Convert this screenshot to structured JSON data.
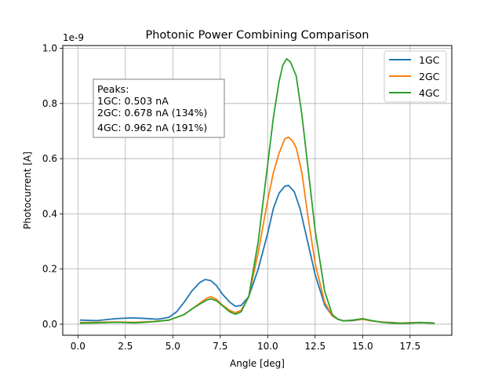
{
  "chart_data": {
    "type": "line",
    "title": "Photonic Power Combining Comparison",
    "xlabel": "Angle [deg]",
    "ylabel": "Photocurrent [A]",
    "y_scale_label": "1e-9",
    "xlim": [
      -0.8,
      19.7
    ],
    "ylim": [
      -0.04,
      1.01
    ],
    "grid": true,
    "legend_position": "top-right",
    "xticks": [
      0.0,
      2.5,
      5.0,
      7.5,
      10.0,
      12.5,
      15.0,
      17.5
    ],
    "xtick_labels": [
      "0.0",
      "2.5",
      "5.0",
      "7.5",
      "10.0",
      "12.5",
      "15.0",
      "17.5"
    ],
    "yticks": [
      0.0,
      0.2,
      0.4,
      0.6,
      0.8,
      1.0
    ],
    "ytick_labels": [
      "0.0",
      "0.2",
      "0.4",
      "0.6",
      "0.8",
      "1.0"
    ],
    "annotation": {
      "lines": [
        "Peaks:",
        "1GC: 0.503 nA",
        "2GC: 0.678 nA (134%)",
        "4GC: 0.962 nA (191%)"
      ]
    },
    "series": [
      {
        "name": "1GC",
        "color": "#1f77b4",
        "x": [
          0.1,
          1.0,
          2.0,
          2.8,
          3.5,
          4.2,
          4.8,
          5.2,
          5.6,
          6.0,
          6.4,
          6.7,
          7.0,
          7.3,
          7.6,
          8.0,
          8.3,
          8.6,
          9.0,
          9.5,
          10.0,
          10.3,
          10.6,
          10.9,
          11.1,
          11.4,
          11.7,
          12.0,
          12.5,
          13.0,
          13.4,
          13.7,
          14.0,
          14.5,
          15.0,
          15.5,
          16.0,
          16.5,
          17.0,
          17.5,
          18.0,
          18.8
        ],
        "y": [
          0.015,
          0.013,
          0.02,
          0.023,
          0.021,
          0.018,
          0.025,
          0.045,
          0.08,
          0.12,
          0.15,
          0.162,
          0.158,
          0.14,
          0.11,
          0.08,
          0.065,
          0.068,
          0.1,
          0.2,
          0.33,
          0.42,
          0.475,
          0.5,
          0.503,
          0.48,
          0.42,
          0.33,
          0.18,
          0.07,
          0.03,
          0.018,
          0.012,
          0.013,
          0.018,
          0.012,
          0.008,
          0.006,
          0.004,
          0.005,
          0.006,
          0.004
        ]
      },
      {
        "name": "2GC",
        "color": "#ff7f0e",
        "x": [
          0.1,
          1.0,
          2.0,
          3.0,
          4.0,
          4.8,
          5.2,
          5.6,
          6.0,
          6.4,
          6.8,
          7.0,
          7.3,
          7.6,
          8.0,
          8.3,
          8.6,
          9.0,
          9.5,
          10.0,
          10.3,
          10.6,
          10.9,
          11.1,
          11.3,
          11.5,
          11.8,
          12.1,
          12.5,
          13.0,
          13.4,
          13.7,
          14.0,
          14.5,
          15.0,
          15.5,
          16.0,
          16.5,
          17.0,
          17.5,
          18.0,
          18.8
        ],
        "y": [
          0.006,
          0.007,
          0.008,
          0.007,
          0.01,
          0.015,
          0.025,
          0.035,
          0.055,
          0.075,
          0.095,
          0.1,
          0.09,
          0.07,
          0.05,
          0.042,
          0.05,
          0.1,
          0.26,
          0.45,
          0.55,
          0.62,
          0.672,
          0.678,
          0.665,
          0.64,
          0.55,
          0.4,
          0.22,
          0.08,
          0.03,
          0.018,
          0.012,
          0.014,
          0.018,
          0.012,
          0.008,
          0.005,
          0.004,
          0.005,
          0.006,
          0.004
        ]
      },
      {
        "name": "4GC",
        "color": "#2ca02c",
        "x": [
          0.1,
          1.0,
          2.0,
          3.0,
          4.0,
          4.8,
          5.2,
          5.6,
          6.0,
          6.4,
          6.8,
          7.0,
          7.3,
          7.6,
          8.0,
          8.3,
          8.6,
          9.0,
          9.5,
          10.0,
          10.3,
          10.6,
          10.8,
          11.0,
          11.2,
          11.5,
          11.8,
          12.1,
          12.5,
          13.0,
          13.4,
          13.7,
          14.0,
          14.5,
          15.0,
          15.5,
          16.0,
          16.5,
          17.0,
          17.5,
          18.0,
          18.8
        ],
        "y": [
          0.004,
          0.005,
          0.007,
          0.005,
          0.009,
          0.015,
          0.025,
          0.035,
          0.055,
          0.072,
          0.088,
          0.092,
          0.085,
          0.068,
          0.045,
          0.036,
          0.045,
          0.1,
          0.3,
          0.58,
          0.75,
          0.88,
          0.94,
          0.962,
          0.95,
          0.9,
          0.76,
          0.58,
          0.34,
          0.12,
          0.035,
          0.018,
          0.012,
          0.015,
          0.02,
          0.013,
          0.007,
          0.004,
          0.003,
          0.004,
          0.006,
          0.004
        ]
      }
    ]
  }
}
